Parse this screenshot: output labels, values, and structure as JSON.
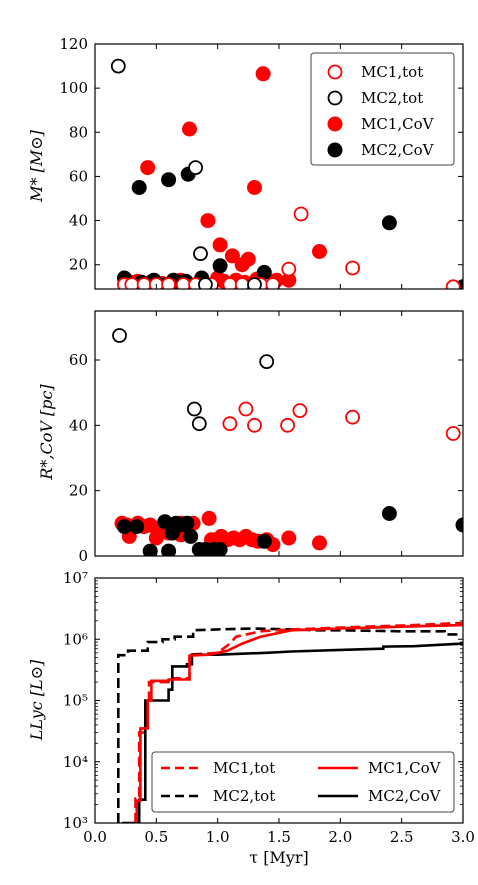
{
  "chart_data": [
    {
      "type": "scatter",
      "ylabel": "M* [M⊙]",
      "xlim": [
        0,
        3.0
      ],
      "ylim": [
        9,
        120
      ],
      "yticks": [
        "20",
        "40",
        "60",
        "80",
        "100",
        "120"
      ],
      "legend_position": "top-right",
      "series": [
        {
          "name": "MC1,tot",
          "style": "open-red",
          "points": [
            [
              0.24,
              11
            ],
            [
              0.3,
              11
            ],
            [
              0.4,
              11
            ],
            [
              0.5,
              11
            ],
            [
              0.6,
              11
            ],
            [
              0.72,
              11
            ],
            [
              0.82,
              11
            ],
            [
              0.95,
              11
            ],
            [
              1.1,
              11
            ],
            [
              1.2,
              11
            ],
            [
              1.35,
              11
            ],
            [
              1.45,
              11
            ],
            [
              1.58,
              18
            ],
            [
              1.68,
              43
            ],
            [
              2.1,
              18.5
            ],
            [
              2.92,
              10
            ]
          ]
        },
        {
          "name": "MC2,tot",
          "style": "open-black",
          "points": [
            [
              0.19,
              110
            ],
            [
              0.82,
              64
            ],
            [
              0.86,
              25
            ],
            [
              0.9,
              11
            ],
            [
              1.3,
              11
            ]
          ]
        },
        {
          "name": "MC1,CoV",
          "style": "filled-red",
          "points": [
            [
              0.43,
              64
            ],
            [
              0.77,
              81.5
            ],
            [
              0.92,
              40
            ],
            [
              1.02,
              29
            ],
            [
              1.12,
              24
            ],
            [
              1.2,
              20
            ],
            [
              1.25,
              22.5
            ],
            [
              1.3,
              55
            ],
            [
              1.37,
              106.5
            ],
            [
              1.48,
              13
            ],
            [
              1.58,
              13
            ],
            [
              1.83,
              26
            ],
            [
              0.3,
              12
            ],
            [
              0.35,
              12.5
            ],
            [
              0.45,
              12
            ],
            [
              0.55,
              11.5
            ],
            [
              0.65,
              12
            ],
            [
              0.7,
              13
            ],
            [
              0.75,
              12
            ],
            [
              0.88,
              12
            ],
            [
              1.0,
              14
            ],
            [
              1.05,
              12.5
            ],
            [
              1.15,
              13
            ],
            [
              1.22,
              12
            ],
            [
              1.32,
              13.5
            ]
          ]
        },
        {
          "name": "MC2,CoV",
          "style": "filled-black",
          "points": [
            [
              0.36,
              55
            ],
            [
              0.6,
              58.5
            ],
            [
              0.76,
              61
            ],
            [
              1.02,
              19.5
            ],
            [
              2.4,
              39
            ],
            [
              3.0,
              10
            ],
            [
              0.24,
              14
            ],
            [
              0.38,
              12
            ],
            [
              0.48,
              13
            ],
            [
              0.58,
              11
            ],
            [
              0.68,
              12
            ],
            [
              0.74,
              12.5
            ],
            [
              0.87,
              14
            ],
            [
              1.38,
              16.5
            ],
            [
              0.92,
              11
            ],
            [
              0.64,
              13
            ]
          ]
        }
      ]
    },
    {
      "type": "scatter",
      "ylabel": "R*,CoV [pc]",
      "xlim": [
        0,
        3.0
      ],
      "ylim": [
        0,
        75
      ],
      "yticks": [
        "0",
        "20",
        "40",
        "60"
      ],
      "series": [
        {
          "name": "MC1,tot",
          "style": "open-red",
          "points": [
            [
              1.1,
              40.5
            ],
            [
              1.23,
              45
            ],
            [
              1.3,
              40
            ],
            [
              1.57,
              40
            ],
            [
              1.67,
              44.5
            ],
            [
              2.1,
              42.5
            ],
            [
              2.92,
              37.5
            ]
          ]
        },
        {
          "name": "MC2,tot",
          "style": "open-black",
          "points": [
            [
              0.2,
              67.5
            ],
            [
              0.81,
              45
            ],
            [
              0.85,
              40.5
            ],
            [
              1.4,
              59.5
            ]
          ]
        },
        {
          "name": "MC1,CoV",
          "style": "filled-red",
          "points": [
            [
              0.22,
              10
            ],
            [
              0.26,
              9.5
            ],
            [
              0.3,
              8.5
            ],
            [
              0.35,
              10
            ],
            [
              0.4,
              9
            ],
            [
              0.45,
              9.5
            ],
            [
              0.5,
              8.5
            ],
            [
              0.55,
              9
            ],
            [
              0.6,
              7
            ],
            [
              0.65,
              8
            ],
            [
              0.7,
              10
            ],
            [
              0.75,
              9
            ],
            [
              0.8,
              10
            ],
            [
              0.93,
              11.5
            ],
            [
              0.98,
              5
            ],
            [
              1.03,
              6
            ],
            [
              1.08,
              5
            ],
            [
              1.13,
              5.5
            ],
            [
              1.18,
              5
            ],
            [
              1.23,
              6
            ],
            [
              1.28,
              5
            ],
            [
              1.33,
              4.5
            ],
            [
              1.4,
              5
            ],
            [
              1.45,
              3.5
            ],
            [
              1.58,
              5.5
            ],
            [
              1.83,
              4
            ],
            [
              0.28,
              6
            ],
            [
              0.5,
              5.5
            ],
            [
              0.7,
              6.5
            ],
            [
              0.95,
              5
            ]
          ]
        },
        {
          "name": "MC2,CoV",
          "style": "filled-black",
          "points": [
            [
              0.24,
              9
            ],
            [
              0.34,
              9
            ],
            [
              0.45,
              1.5
            ],
            [
              0.57,
              10.5
            ],
            [
              0.6,
              1.5
            ],
            [
              0.66,
              10
            ],
            [
              0.7,
              9.5
            ],
            [
              0.75,
              10
            ],
            [
              0.78,
              6
            ],
            [
              0.85,
              2
            ],
            [
              0.9,
              2
            ],
            [
              0.97,
              2
            ],
            [
              1.02,
              2
            ],
            [
              1.38,
              4.5
            ],
            [
              2.4,
              13
            ],
            [
              3.0,
              9.5
            ],
            [
              0.63,
              7
            ]
          ]
        }
      ]
    },
    {
      "type": "line",
      "ylabel": "LLyc [L⊙]",
      "xlabel": "τ [Myr]",
      "yscale": "log",
      "xlim": [
        0,
        3.0
      ],
      "ylim": [
        1000,
        10000000
      ],
      "xticks": [
        "0.0",
        "0.5",
        "1.0",
        "1.5",
        "2.0",
        "2.5",
        "3.0"
      ],
      "yticks": [
        "10³",
        "10⁴",
        "10⁵",
        "10⁶",
        "10⁷"
      ],
      "legend_position": "bottom-right",
      "series": [
        {
          "name": "MC1,tot",
          "style": "dashed-red",
          "points": [
            [
              0.33,
              1000
            ],
            [
              0.33,
              2500
            ],
            [
              0.36,
              2500
            ],
            [
              0.36,
              30000
            ],
            [
              0.42,
              30000
            ],
            [
              0.42,
              100000
            ],
            [
              0.44,
              100000
            ],
            [
              0.44,
              200000
            ],
            [
              0.6,
              200000
            ],
            [
              0.6,
              230000
            ],
            [
              0.77,
              230000
            ],
            [
              0.77,
              560000
            ],
            [
              1.0,
              600000
            ],
            [
              1.1,
              850000
            ],
            [
              1.15,
              1100000
            ],
            [
              1.35,
              1350000
            ],
            [
              1.6,
              1450000
            ],
            [
              1.8,
              1500000
            ],
            [
              2.2,
              1600000
            ],
            [
              2.6,
              1700000
            ],
            [
              3.0,
              1850000
            ]
          ]
        },
        {
          "name": "MC2,tot",
          "style": "dashed-black",
          "points": [
            [
              0.19,
              1000
            ],
            [
              0.19,
              550000
            ],
            [
              0.27,
              550000
            ],
            [
              0.27,
              650000
            ],
            [
              0.43,
              650000
            ],
            [
              0.43,
              900000
            ],
            [
              0.55,
              900000
            ],
            [
              0.55,
              1000000
            ],
            [
              0.65,
              1000000
            ],
            [
              0.65,
              1100000
            ],
            [
              0.8,
              1100000
            ],
            [
              0.8,
              1400000
            ],
            [
              1.0,
              1450000
            ],
            [
              1.3,
              1500000
            ],
            [
              1.6,
              1450000
            ],
            [
              1.8,
              1400000
            ],
            [
              2.0,
              1400000
            ],
            [
              2.5,
              1350000
            ],
            [
              2.85,
              1350000
            ],
            [
              2.85,
              1200000
            ],
            [
              3.0,
              1200000
            ]
          ]
        },
        {
          "name": "MC1,CoV",
          "style": "solid-red",
          "points": [
            [
              0.34,
              1000
            ],
            [
              0.34,
              2300
            ],
            [
              0.37,
              2300
            ],
            [
              0.37,
              35000
            ],
            [
              0.43,
              35000
            ],
            [
              0.43,
              100000
            ],
            [
              0.46,
              100000
            ],
            [
              0.46,
              210000
            ],
            [
              0.6,
              210000
            ],
            [
              0.6,
              220000
            ],
            [
              0.77,
              220000
            ],
            [
              0.77,
              540000
            ],
            [
              0.93,
              560000
            ],
            [
              1.08,
              650000
            ],
            [
              1.2,
              850000
            ],
            [
              1.35,
              1100000
            ],
            [
              1.6,
              1400000
            ],
            [
              2.0,
              1500000
            ],
            [
              2.5,
              1600000
            ],
            [
              3.0,
              1700000
            ]
          ]
        },
        {
          "name": "MC2,CoV",
          "style": "solid-black",
          "points": [
            [
              0.22,
              1000
            ],
            [
              0.22,
              1000
            ],
            [
              0.36,
              1000
            ],
            [
              0.36,
              2400
            ],
            [
              0.41,
              2400
            ],
            [
              0.41,
              100000
            ],
            [
              0.6,
              100000
            ],
            [
              0.6,
              150000
            ],
            [
              0.63,
              150000
            ],
            [
              0.63,
              360000
            ],
            [
              0.75,
              360000
            ],
            [
              0.75,
              390000
            ],
            [
              0.79,
              390000
            ],
            [
              0.79,
              560000
            ],
            [
              1.0,
              560000
            ],
            [
              1.2,
              580000
            ],
            [
              1.4,
              600000
            ],
            [
              1.6,
              630000
            ],
            [
              2.0,
              670000
            ],
            [
              2.35,
              700000
            ],
            [
              2.35,
              760000
            ],
            [
              2.6,
              770000
            ],
            [
              3.0,
              850000
            ]
          ]
        }
      ]
    }
  ]
}
